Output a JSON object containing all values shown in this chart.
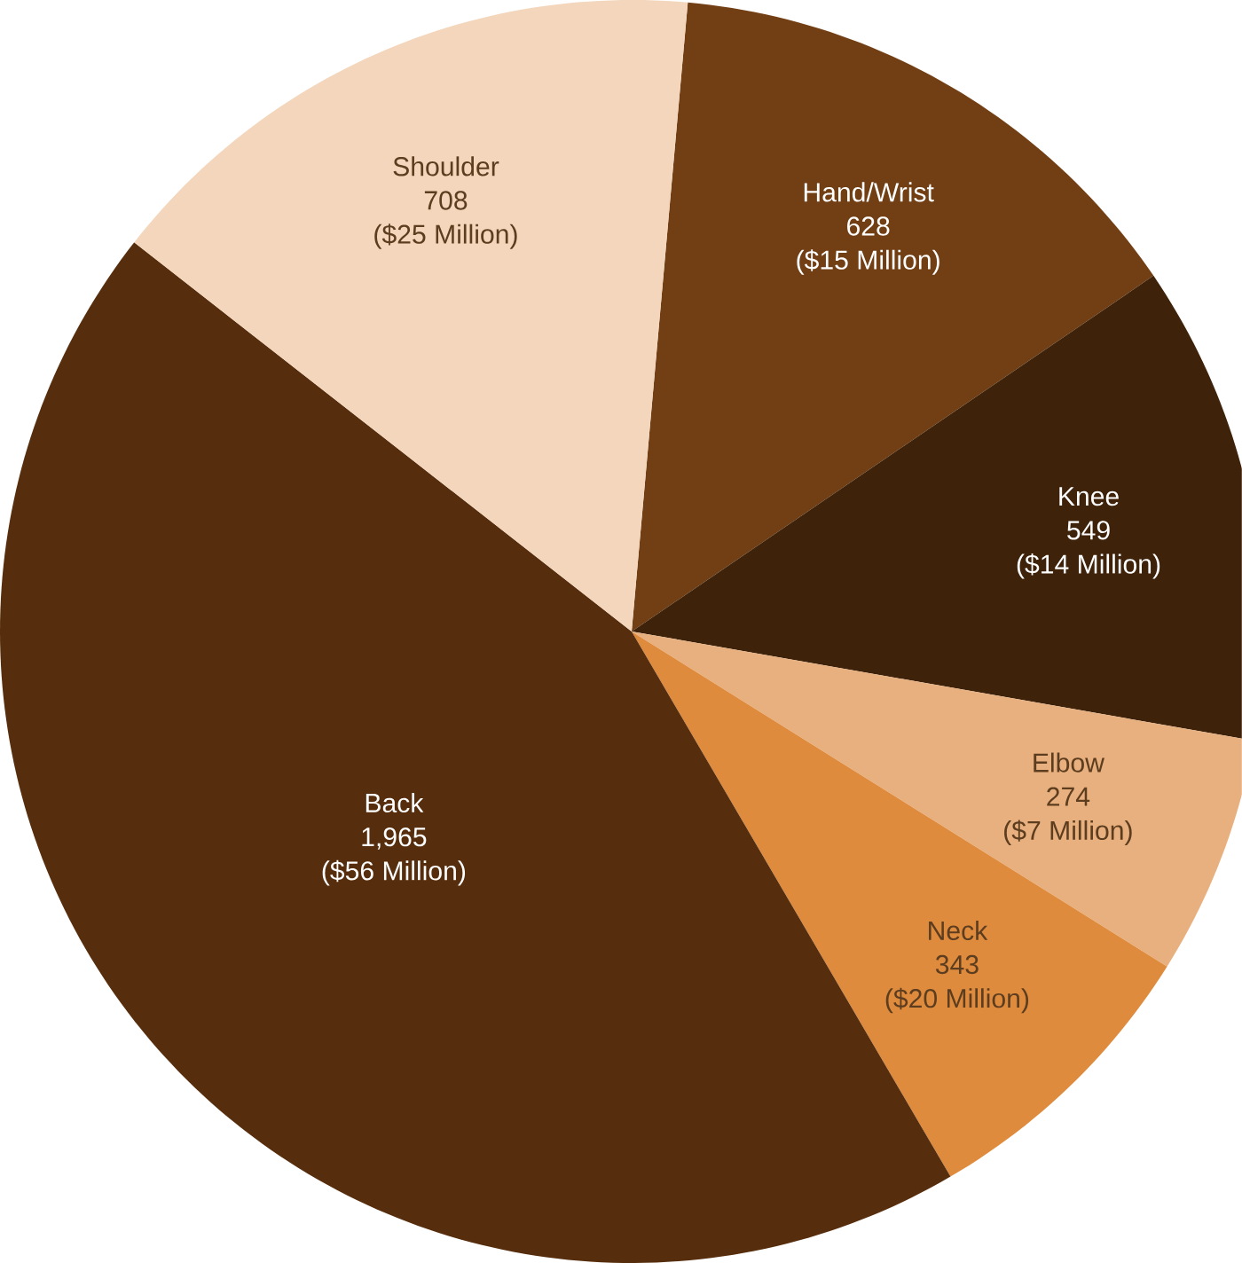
{
  "chart_data": {
    "type": "pie",
    "categories": [
      "Hand/Wrist",
      "Knee",
      "Elbow",
      "Neck",
      "Back",
      "Shoulder"
    ],
    "values": [
      628,
      549,
      274,
      343,
      1965,
      708
    ],
    "value_labels": [
      "628",
      "549",
      "274",
      "343",
      "1,965",
      "708"
    ],
    "annotations": [
      "($15 Million)",
      "($14 Million)",
      "($7 Million)",
      "($20 Million)",
      "($56 Million)",
      "($25 Million)"
    ],
    "colors": [
      "#723f15",
      "#3e220a",
      "#e8b07e",
      "#df8b3d",
      "#572e0d",
      "#f3d6bb"
    ]
  }
}
